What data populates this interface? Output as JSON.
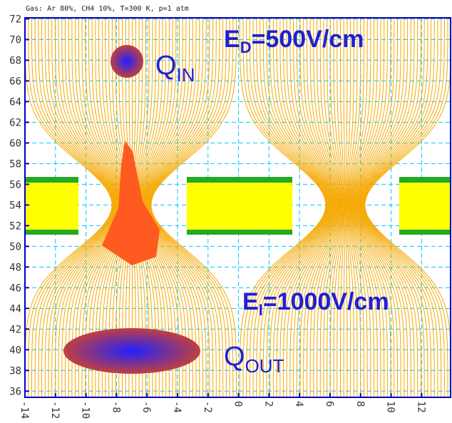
{
  "chart_data": {
    "type": "field-map",
    "title": "Gas: Ar 80%, CH4 10%, T=300 K, p=1 atm",
    "xlim": [
      -14,
      13.9
    ],
    "ylim": [
      35.4,
      72.1
    ],
    "xticks": [
      -14,
      -12,
      -10,
      -8,
      -6,
      -4,
      -2,
      0,
      2,
      4,
      6,
      8,
      10,
      12
    ],
    "yticks": [
      36,
      38,
      40,
      42,
      44,
      46,
      48,
      50,
      52,
      54,
      56,
      58,
      60,
      62,
      64,
      66,
      68,
      70,
      72
    ],
    "grid": true,
    "annotations": [
      {
        "text": "E",
        "sub": "D",
        "suffix": "=500V/cm"
      },
      {
        "text": "Q",
        "sub": "IN"
      },
      {
        "text": "E",
        "sub": "I",
        "suffix": "=1000V/cm"
      },
      {
        "text": "Q",
        "sub": "OUT"
      }
    ]
  }
}
